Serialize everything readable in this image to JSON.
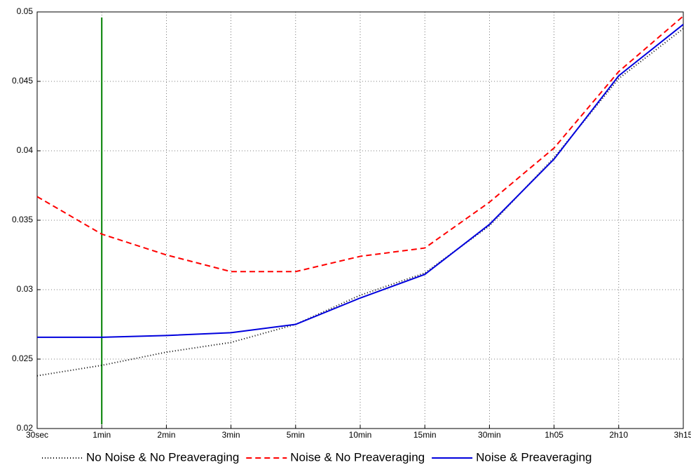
{
  "chart_data": {
    "type": "line",
    "categories": [
      "30sec",
      "1min",
      "2min",
      "3min",
      "5min",
      "10min",
      "15min",
      "30min",
      "1h05",
      "2h10",
      "3h15"
    ],
    "series": [
      {
        "name": "No Noise & No Preaveraging",
        "color": "#000000",
        "dash": "dotted",
        "values": [
          0.0238,
          0.02455,
          0.0255,
          0.0262,
          0.0275,
          0.0296,
          0.0312,
          0.0346,
          0.0395,
          0.0452,
          0.0488
        ]
      },
      {
        "name": "Noise & No Preaveraging",
        "color": "#ff0000",
        "dash": "dashed",
        "values": [
          0.0367,
          0.034,
          0.0325,
          0.0313,
          0.0313,
          0.0324,
          0.033,
          0.0363,
          0.0402,
          0.0457,
          0.0497
        ]
      },
      {
        "name": "Noise & Preaveraging",
        "color": "#0000dd",
        "dash": "solid",
        "values": [
          0.02657,
          0.02657,
          0.0267,
          0.0269,
          0.0275,
          0.0294,
          0.0311,
          0.0347,
          0.0394,
          0.0454,
          0.0491
        ]
      }
    ],
    "vertical_line": {
      "category_index": 1,
      "color": "#008000",
      "from": 0.0203,
      "to": 0.0496
    },
    "ylim": [
      0.02,
      0.05
    ],
    "yticks": [
      0.02,
      0.025,
      0.03,
      0.035,
      0.04,
      0.045,
      0.05
    ],
    "grid": true,
    "legend": "bottom"
  }
}
